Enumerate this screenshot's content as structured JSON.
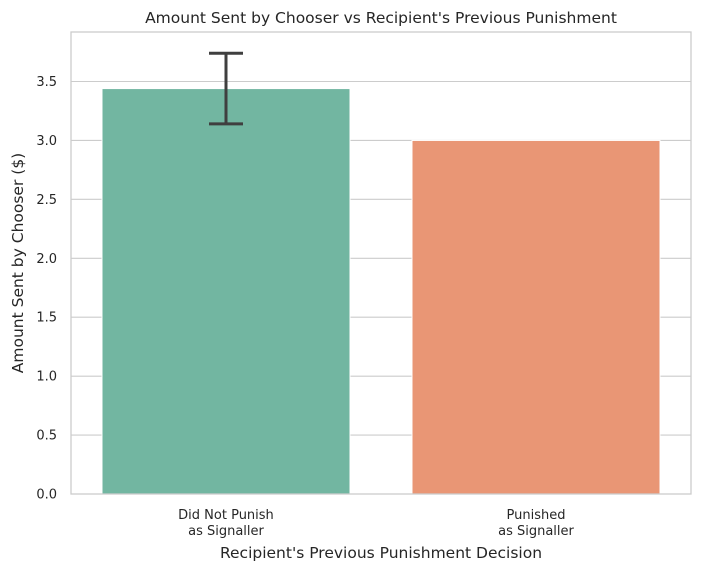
{
  "chart_data": {
    "type": "bar",
    "title": "Amount Sent by Chooser vs Recipient's Previous Punishment",
    "xlabel": "Recipient's Previous Punishment Decision",
    "ylabel": "Amount Sent by Chooser ($)",
    "categories": [
      [
        "Did Not Punish",
        "as Signaller"
      ],
      [
        "Punished",
        "as Signaller"
      ]
    ],
    "values": [
      3.44,
      3.0
    ],
    "error_bars": [
      {
        "low": 3.14,
        "high": 3.74
      },
      null
    ],
    "colors": [
      "#72b6a1",
      "#e99675"
    ],
    "error_color": "#3f3f3f",
    "ylim": [
      0,
      3.92
    ],
    "yticks": [
      0.0,
      0.5,
      1.0,
      1.5,
      2.0,
      2.5,
      3.0,
      3.5
    ],
    "ytick_labels": [
      "0.0",
      "0.5",
      "1.0",
      "1.5",
      "2.0",
      "2.5",
      "3.0",
      "3.5"
    ],
    "grid": true,
    "legend": "none"
  }
}
